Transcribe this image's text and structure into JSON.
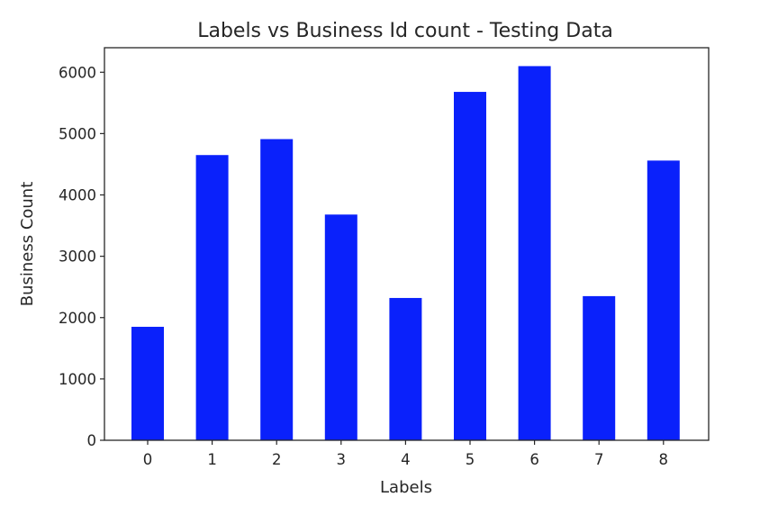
{
  "chart_data": {
    "type": "bar",
    "title": "Labels vs Business Id count - Testing Data",
    "xlabel": "Labels",
    "ylabel": "Business Count",
    "categories": [
      "0",
      "1",
      "2",
      "3",
      "4",
      "5",
      "6",
      "7",
      "8"
    ],
    "values": [
      1850,
      4650,
      4910,
      3680,
      2320,
      5680,
      6100,
      2350,
      4560
    ],
    "ylim": [
      0,
      6400
    ],
    "yticks": [
      "0",
      "1000",
      "2000",
      "3000",
      "4000",
      "5000",
      "6000"
    ],
    "bar_color": "#0a21fb",
    "grid": false,
    "legend": false
  }
}
